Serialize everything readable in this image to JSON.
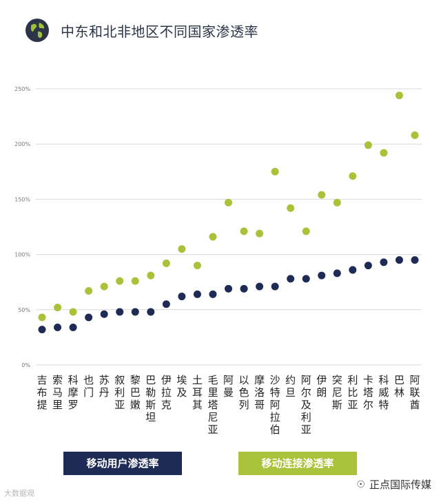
{
  "header": {
    "title": "中东和北非地区不同国家渗透率",
    "icon": "globe-icon"
  },
  "colors": {
    "user_series": "#1d2b55",
    "connection_series": "#a9c23a"
  },
  "chart_data": {
    "type": "scatter",
    "title": "中东和北非地区不同国家渗透率",
    "xlabel": "",
    "ylabel": "",
    "ylim": [
      0,
      250
    ],
    "yticks": [
      0,
      50,
      100,
      150,
      200,
      250
    ],
    "ytick_labels": [
      "0%",
      "50%",
      "100%",
      "150%",
      "200%",
      "250%"
    ],
    "grid": true,
    "categories": [
      "吉布提",
      "索马里",
      "科摩罗",
      "也门",
      "苏丹",
      "叙利亚",
      "黎巴嫩",
      "巴勒斯坦",
      "伊拉克",
      "埃及",
      "土耳其",
      "毛里塔尼亚",
      "阿曼",
      "以色列",
      "摩洛哥",
      "沙特阿拉伯",
      "约旦",
      "阿尔及利亚",
      "伊朗",
      "突尼斯",
      "利比亚",
      "卡塔尔",
      "科威特",
      "巴林",
      "阿联酋"
    ],
    "series": [
      {
        "name": "移动用户渗透率",
        "color": "#1d2b55",
        "values": [
          32,
          34,
          34,
          43,
          46,
          48,
          48,
          48,
          55,
          62,
          64,
          64,
          69,
          69,
          71,
          71,
          78,
          78,
          81,
          83,
          86,
          90,
          93,
          95,
          95
        ]
      },
      {
        "name": "移动连接渗透率",
        "color": "#a9c23a",
        "values": [
          43,
          52,
          48,
          67,
          71,
          76,
          76,
          81,
          92,
          105,
          90,
          116,
          147,
          121,
          119,
          175,
          142,
          121,
          154,
          147,
          171,
          199,
          192,
          244,
          208
        ]
      }
    ],
    "legend_position": "bottom"
  },
  "legend": {
    "user_label": "移动用户渗透率",
    "connection_label": "移动连接渗透率"
  },
  "watermarks": {
    "left": "大数据观",
    "right": "正点国际传媒"
  }
}
